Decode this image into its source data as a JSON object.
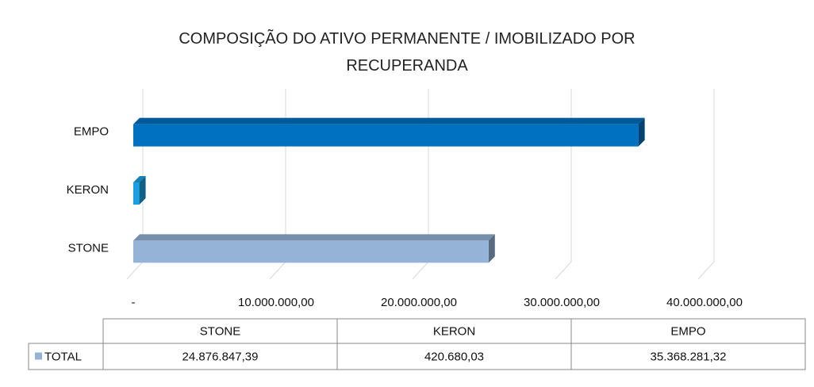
{
  "chart_data": {
    "type": "bar",
    "orientation": "horizontal",
    "title": "COMPOSIÇÃO DO ATIVO PERMANENTE / IMOBILIZADO POR RECUPERANDA",
    "categories": [
      "STONE",
      "KERON",
      "EMPO"
    ],
    "series": [
      {
        "name": "TOTAL",
        "color": "#95b3d7",
        "colors": [
          "#95b3d7",
          "#1ba1e2",
          "#0070c0"
        ],
        "values": [
          24876847.39,
          420680.03,
          35368281.32
        ],
        "value_labels": [
          "24.876.847,39",
          "420.680,03",
          "35.368.281,32"
        ]
      }
    ],
    "xlim": [
      0,
      40000000
    ],
    "xticks": [
      {
        "value": 0,
        "label": "-"
      },
      {
        "value": 10000000,
        "label": "10.000.000,00"
      },
      {
        "value": 20000000,
        "label": "20.000.000,00"
      },
      {
        "value": 30000000,
        "label": "30.000.000,00"
      },
      {
        "value": 40000000,
        "label": "40.000.000,00"
      }
    ],
    "grid": true,
    "data_table": true
  }
}
